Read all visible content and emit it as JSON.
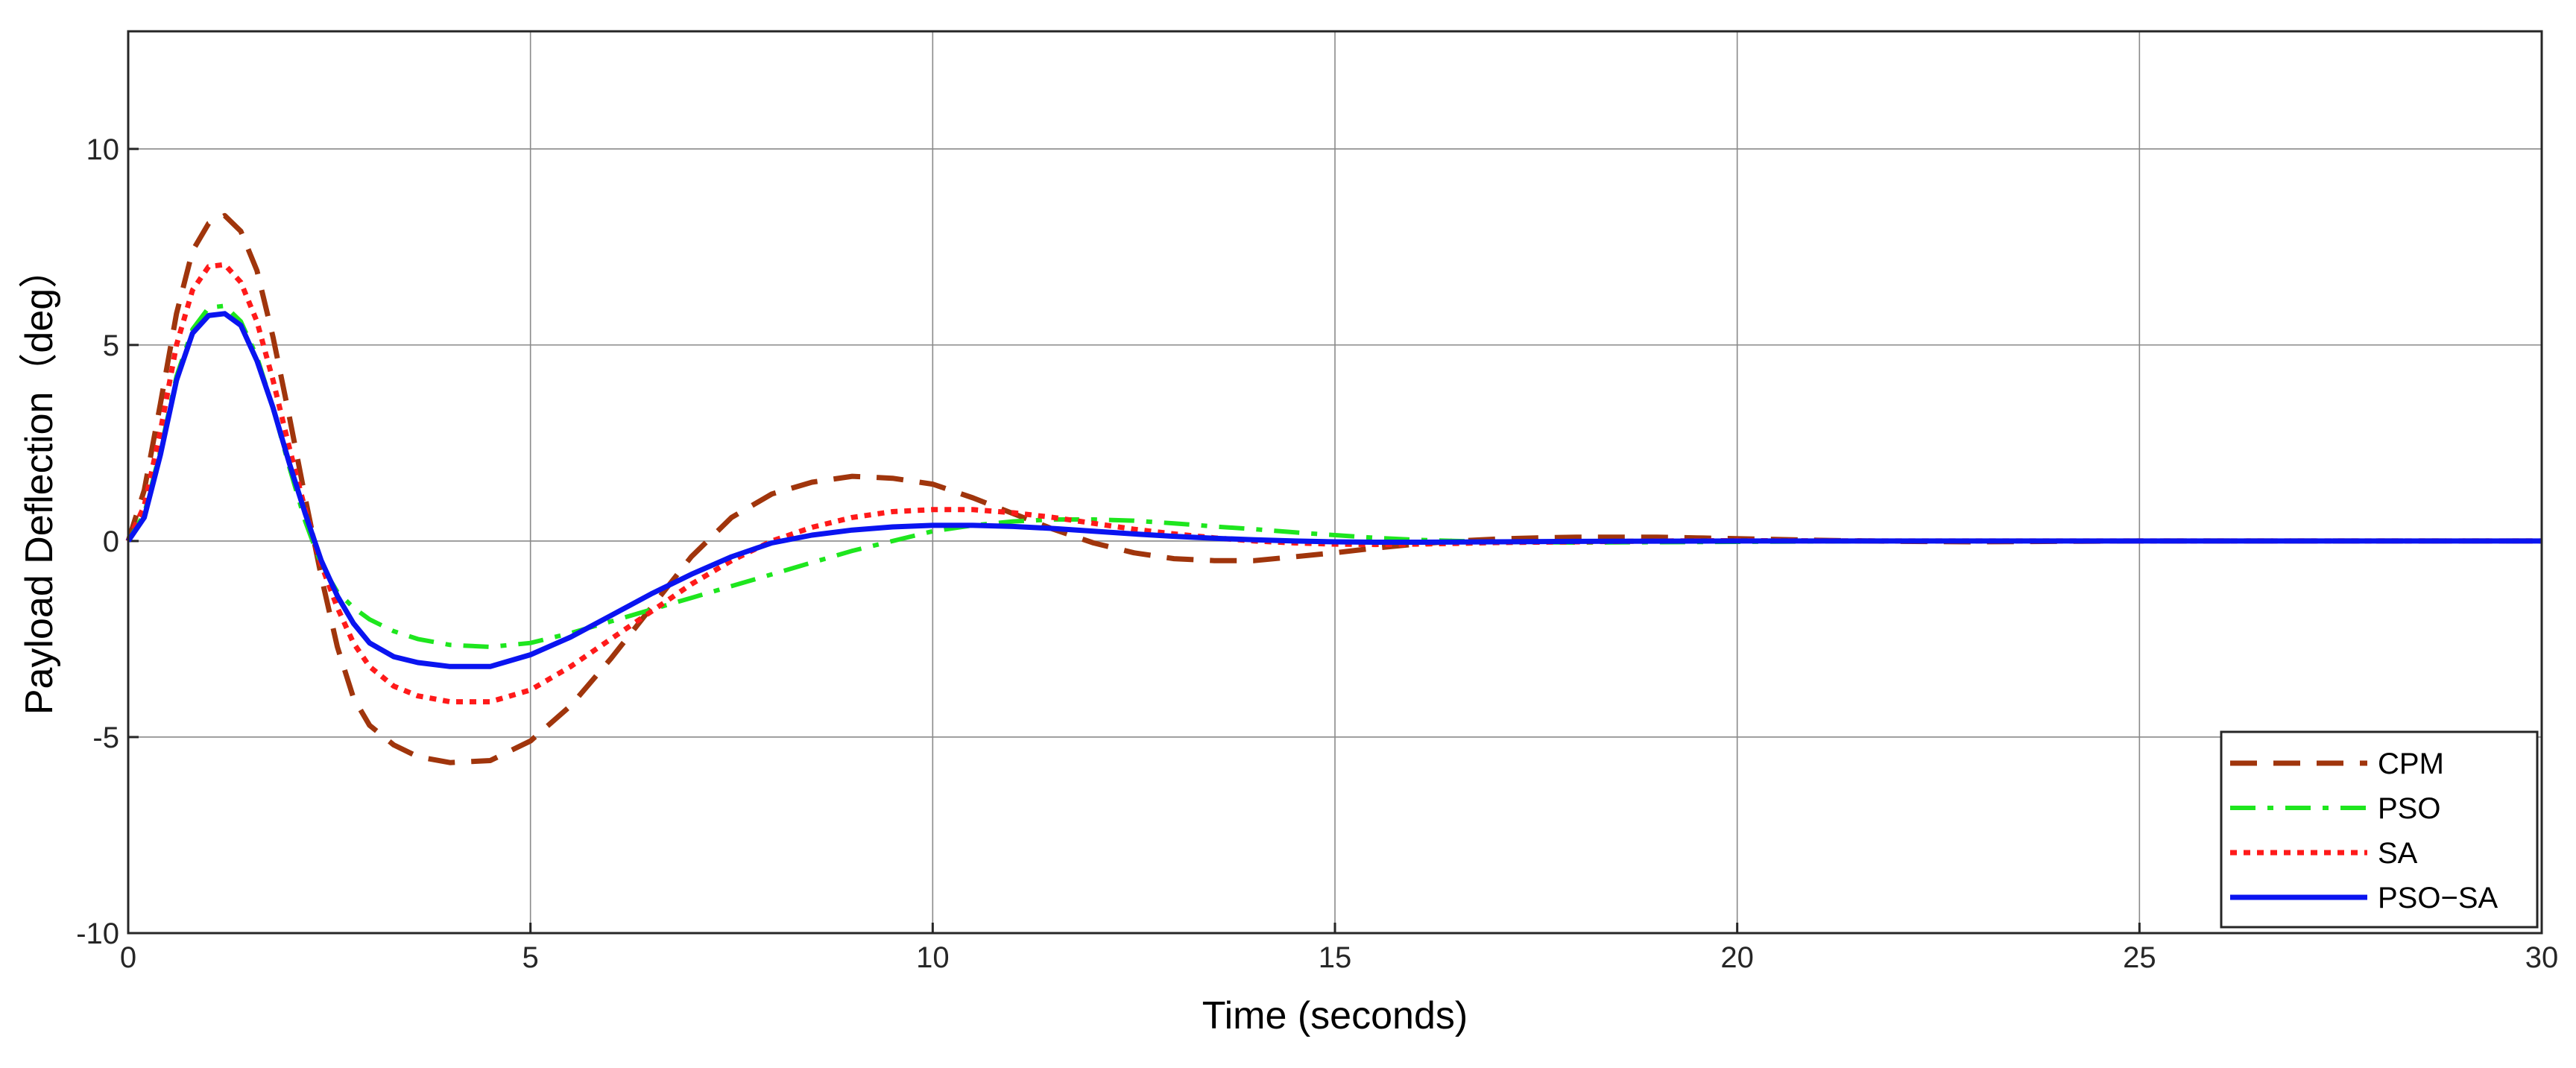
{
  "chart_data": {
    "type": "line",
    "title": "",
    "xlabel": "Time (seconds)",
    "ylabel": "Payload Deflection（deg）",
    "xlim": [
      0,
      30
    ],
    "ylim": [
      -10,
      13
    ],
    "x_ticks": [
      0,
      5,
      10,
      15,
      20,
      25,
      30
    ],
    "y_ticks": [
      -10,
      -5,
      0,
      5,
      10
    ],
    "grid": true,
    "legend_position": "bottom-right",
    "series": [
      {
        "name": "CPM",
        "color": "#a0350c",
        "line_style": "dashed",
        "x": [
          0,
          0.2,
          0.4,
          0.6,
          0.8,
          1.0,
          1.2,
          1.4,
          1.6,
          1.8,
          2.0,
          2.2,
          2.4,
          2.6,
          2.8,
          3.0,
          3.3,
          3.6,
          4.0,
          4.5,
          5.0,
          5.5,
          6.0,
          6.5,
          7.0,
          7.5,
          8.0,
          8.5,
          9.0,
          9.5,
          10.0,
          10.5,
          11.0,
          11.5,
          12.0,
          12.5,
          13.0,
          13.5,
          14.0,
          14.5,
          15.0,
          15.5,
          16.0,
          16.5,
          17.0,
          17.5,
          18.0,
          18.5,
          19.0,
          19.5,
          20.0,
          21.0,
          22.0,
          23.0,
          24.0,
          25.0,
          26.0,
          27.0,
          28.0,
          29.0,
          30.0
        ],
        "y": [
          0,
          1.3,
          3.5,
          5.8,
          7.4,
          8.1,
          8.3,
          7.9,
          6.9,
          5.2,
          3.2,
          1.1,
          -0.9,
          -2.7,
          -4.0,
          -4.7,
          -5.2,
          -5.5,
          -5.65,
          -5.6,
          -5.1,
          -4.2,
          -3.0,
          -1.7,
          -0.4,
          0.6,
          1.2,
          1.5,
          1.65,
          1.6,
          1.45,
          1.1,
          0.7,
          0.3,
          -0.05,
          -0.3,
          -0.45,
          -0.5,
          -0.5,
          -0.4,
          -0.3,
          -0.18,
          -0.08,
          0.0,
          0.05,
          0.08,
          0.1,
          0.1,
          0.1,
          0.08,
          0.06,
          0.02,
          -0.01,
          -0.02,
          -0.01,
          0.0,
          0.0,
          0.0,
          0.0,
          0.0,
          0.0
        ]
      },
      {
        "name": "PSO",
        "color": "#1ee61e",
        "line_style": "dashdot",
        "x": [
          0,
          0.2,
          0.4,
          0.6,
          0.8,
          1.0,
          1.2,
          1.4,
          1.6,
          1.8,
          2.0,
          2.2,
          2.4,
          2.6,
          2.8,
          3.0,
          3.3,
          3.6,
          4.0,
          4.5,
          5.0,
          5.5,
          6.0,
          6.5,
          7.0,
          7.5,
          8.0,
          8.5,
          9.0,
          9.5,
          10.0,
          10.5,
          11.0,
          11.5,
          12.0,
          12.5,
          13.0,
          13.5,
          14.0,
          14.5,
          15.0,
          15.5,
          16.0,
          16.5,
          17.0,
          18.0,
          19.0,
          20.0,
          22.0,
          25.0,
          30.0
        ],
        "y": [
          0,
          0.7,
          2.3,
          4.2,
          5.4,
          5.95,
          6.0,
          5.6,
          4.7,
          3.4,
          1.9,
          0.5,
          -0.6,
          -1.3,
          -1.7,
          -2.0,
          -2.3,
          -2.5,
          -2.65,
          -2.7,
          -2.6,
          -2.35,
          -2.05,
          -1.75,
          -1.45,
          -1.15,
          -0.85,
          -0.55,
          -0.25,
          0.0,
          0.25,
          0.4,
          0.5,
          0.55,
          0.55,
          0.52,
          0.45,
          0.37,
          0.3,
          0.22,
          0.15,
          0.08,
          0.03,
          0.0,
          -0.02,
          -0.04,
          -0.03,
          -0.02,
          0.0,
          0.0,
          0.0
        ]
      },
      {
        "name": "SA",
        "color": "#ff1a1a",
        "line_style": "dotted",
        "x": [
          0,
          0.2,
          0.4,
          0.6,
          0.8,
          1.0,
          1.2,
          1.4,
          1.6,
          1.8,
          2.0,
          2.2,
          2.4,
          2.6,
          2.8,
          3.0,
          3.3,
          3.6,
          4.0,
          4.5,
          5.0,
          5.5,
          6.0,
          6.5,
          7.0,
          7.5,
          8.0,
          8.5,
          9.0,
          9.5,
          10.0,
          10.5,
          11.0,
          11.5,
          12.0,
          12.5,
          13.0,
          13.5,
          14.0,
          14.5,
          15.0,
          15.5,
          16.0,
          16.5,
          17.0,
          18.0,
          19.0,
          20.0,
          22.0,
          25.0,
          30.0
        ],
        "y": [
          0,
          0.9,
          2.8,
          5.0,
          6.4,
          7.0,
          7.05,
          6.6,
          5.6,
          4.1,
          2.4,
          0.8,
          -0.6,
          -1.7,
          -2.6,
          -3.2,
          -3.7,
          -3.95,
          -4.1,
          -4.1,
          -3.8,
          -3.2,
          -2.5,
          -1.8,
          -1.1,
          -0.5,
          0.0,
          0.35,
          0.6,
          0.75,
          0.8,
          0.8,
          0.72,
          0.6,
          0.45,
          0.3,
          0.18,
          0.08,
          0.0,
          -0.05,
          -0.08,
          -0.09,
          -0.08,
          -0.06,
          -0.04,
          -0.02,
          0.0,
          0.01,
          0.0,
          0.0,
          0.0
        ]
      },
      {
        "name": "PSO−SA",
        "color": "#0a14f0",
        "line_style": "solid",
        "x": [
          0,
          0.2,
          0.4,
          0.6,
          0.8,
          1.0,
          1.2,
          1.4,
          1.6,
          1.8,
          2.0,
          2.2,
          2.4,
          2.6,
          2.8,
          3.0,
          3.3,
          3.6,
          4.0,
          4.5,
          5.0,
          5.5,
          6.0,
          6.5,
          7.0,
          7.5,
          8.0,
          8.5,
          9.0,
          9.5,
          10.0,
          10.5,
          11.0,
          11.5,
          12.0,
          12.5,
          13.0,
          13.5,
          14.0,
          14.5,
          15.0,
          15.5,
          16.0,
          17.0,
          18.0,
          20.0,
          22.0,
          25.0,
          30.0
        ],
        "y": [
          0,
          0.6,
          2.2,
          4.1,
          5.3,
          5.75,
          5.8,
          5.5,
          4.6,
          3.4,
          2.0,
          0.7,
          -0.5,
          -1.4,
          -2.1,
          -2.6,
          -2.95,
          -3.1,
          -3.2,
          -3.2,
          -2.9,
          -2.45,
          -1.9,
          -1.35,
          -0.85,
          -0.4,
          -0.05,
          0.15,
          0.28,
          0.36,
          0.4,
          0.4,
          0.37,
          0.32,
          0.25,
          0.18,
          0.12,
          0.07,
          0.03,
          0.0,
          -0.02,
          -0.03,
          -0.03,
          -0.02,
          -0.01,
          0.0,
          0.0,
          0.0,
          0.0
        ]
      }
    ]
  }
}
